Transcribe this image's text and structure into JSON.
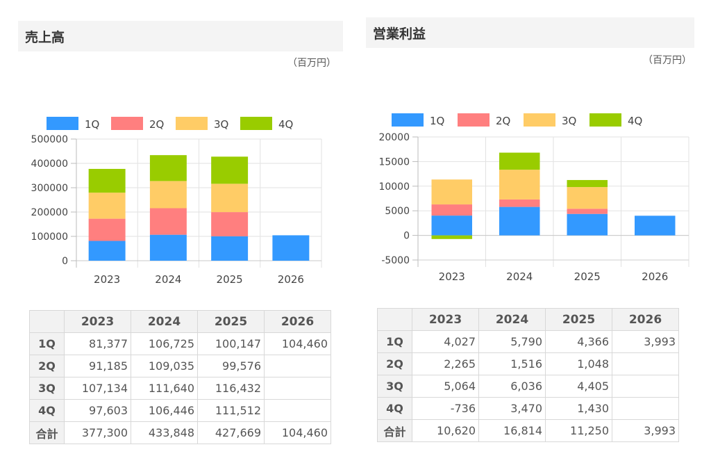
{
  "left": {
    "title": "売上高",
    "unit": "（百万円）",
    "table": {
      "columns": [
        "",
        "2023",
        "2024",
        "2025",
        "2026"
      ],
      "rows": [
        [
          "1Q",
          "81,377",
          "106,725",
          "100,147",
          "104,460"
        ],
        [
          "2Q",
          "91,185",
          "109,035",
          "99,576",
          ""
        ],
        [
          "3Q",
          "107,134",
          "111,640",
          "116,432",
          ""
        ],
        [
          "4Q",
          "97,603",
          "106,446",
          "111,512",
          ""
        ],
        [
          "合計",
          "377,300",
          "433,848",
          "427,669",
          "104,460"
        ]
      ]
    }
  },
  "right": {
    "title": "営業利益",
    "unit": "（百万円）",
    "table": {
      "columns": [
        "",
        "2023",
        "2024",
        "2025",
        "2026"
      ],
      "rows": [
        [
          "1Q",
          "4,027",
          "5,790",
          "4,366",
          "3,993"
        ],
        [
          "2Q",
          "2,265",
          "1,516",
          "1,048",
          ""
        ],
        [
          "3Q",
          "5,064",
          "6,036",
          "4,405",
          ""
        ],
        [
          "4Q",
          "-736",
          "3,470",
          "1,430",
          ""
        ],
        [
          "合計",
          "10,620",
          "16,814",
          "11,250",
          "3,993"
        ]
      ]
    }
  },
  "chart_data": [
    {
      "type": "bar",
      "stacked": true,
      "categories": [
        "2023",
        "2024",
        "2025",
        "2026"
      ],
      "series": [
        {
          "name": "1Q",
          "color": "#3399ff",
          "values": [
            81377,
            106725,
            100147,
            104460
          ]
        },
        {
          "name": "2Q",
          "color": "#ff7f7f",
          "values": [
            91185,
            109035,
            99576,
            null
          ]
        },
        {
          "name": "3Q",
          "color": "#ffcc66",
          "values": [
            107134,
            111640,
            116432,
            null
          ]
        },
        {
          "name": "4Q",
          "color": "#99cc00",
          "values": [
            97603,
            106446,
            111512,
            null
          ]
        }
      ],
      "ylim": [
        0,
        500000
      ],
      "yticks": [
        "0",
        "100000",
        "200000",
        "300000",
        "400000",
        "500000"
      ],
      "legend": "top",
      "grid": true
    },
    {
      "type": "bar",
      "stacked": true,
      "categories": [
        "2023",
        "2024",
        "2025",
        "2026"
      ],
      "series": [
        {
          "name": "1Q",
          "color": "#3399ff",
          "values": [
            4027,
            5790,
            4366,
            3993
          ]
        },
        {
          "name": "2Q",
          "color": "#ff7f7f",
          "values": [
            2265,
            1516,
            1048,
            null
          ]
        },
        {
          "name": "3Q",
          "color": "#ffcc66",
          "values": [
            5064,
            6036,
            4405,
            null
          ]
        },
        {
          "name": "4Q",
          "color": "#99cc00",
          "values": [
            -736,
            3470,
            1430,
            null
          ]
        }
      ],
      "ylim": [
        -5000,
        20000
      ],
      "yticks": [
        "-5000",
        "0",
        "5000",
        "10000",
        "15000",
        "20000"
      ],
      "legend": "top",
      "grid": true
    }
  ]
}
